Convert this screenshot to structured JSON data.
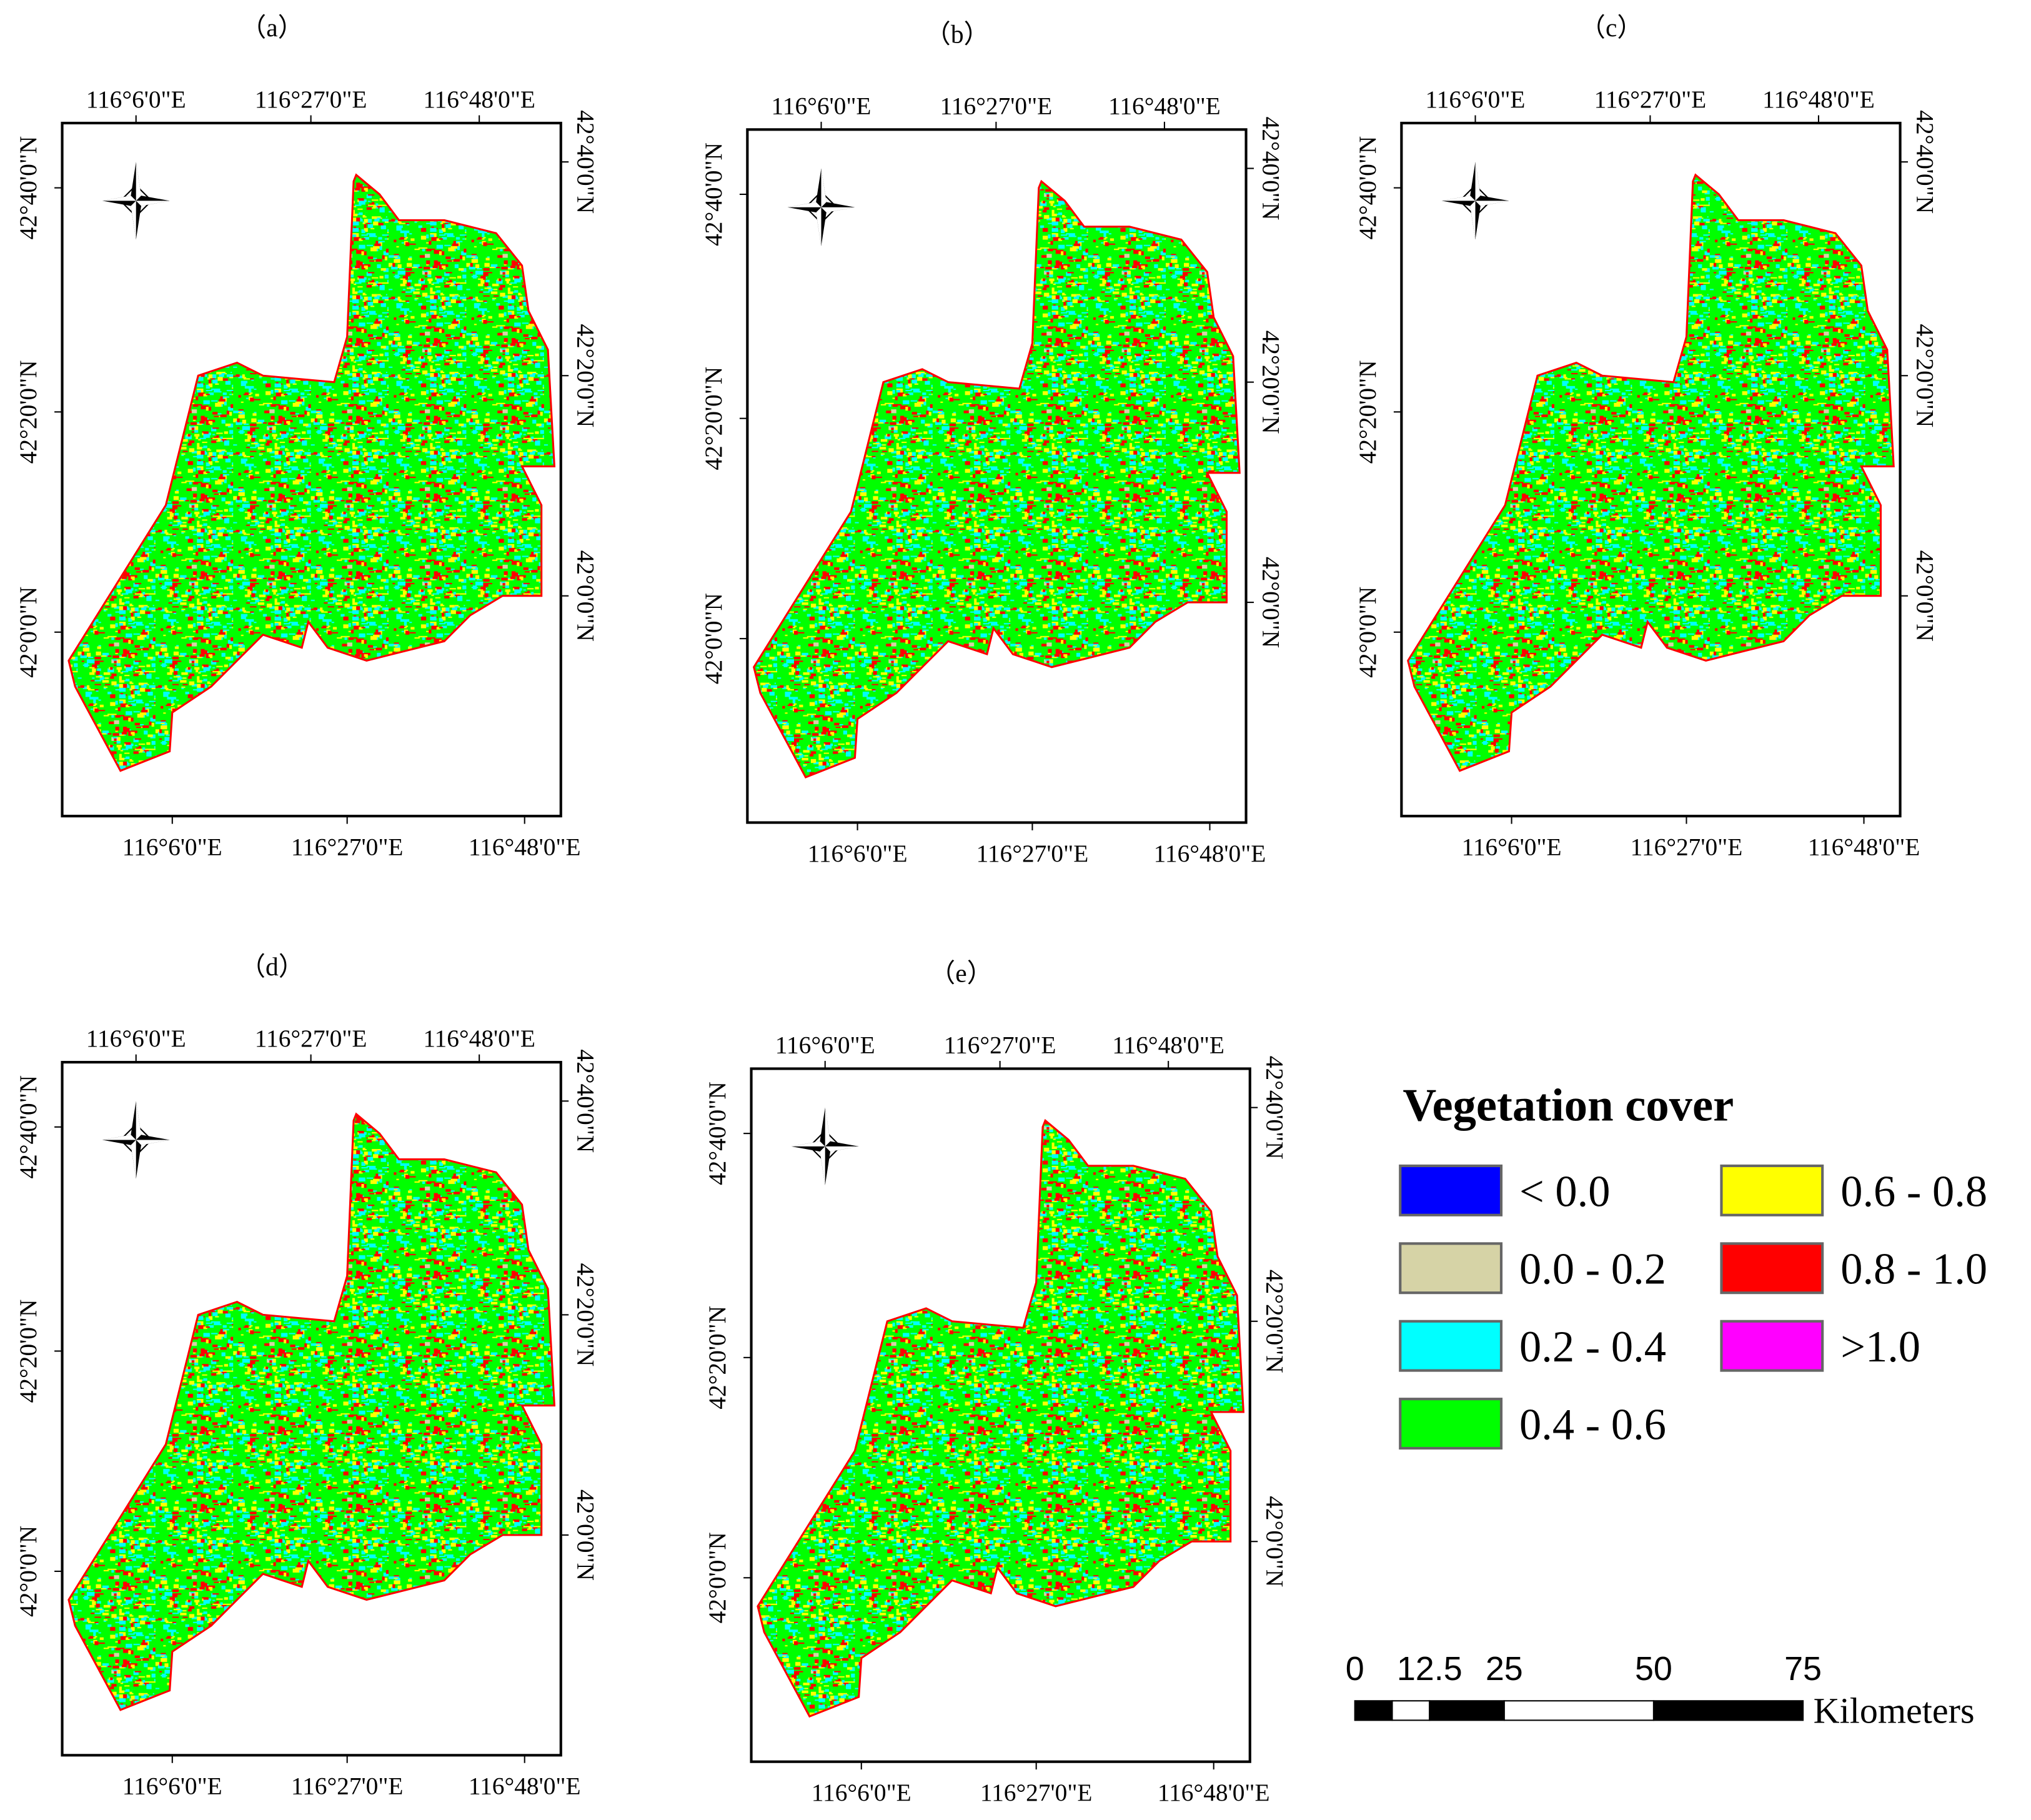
{
  "panels": [
    {
      "label": "（a）",
      "top_labels": [
        "116°6'0\"E",
        "116°27'0\"E",
        "116°48'0\"E"
      ],
      "bottom_labels": [
        "116°6'0\"E",
        "116°27'0\"E",
        "116°48'0\"E"
      ],
      "left_labels": [
        "42°40'0\"N",
        "42°20'0\"N",
        "42°0'0\"N"
      ],
      "right_labels": [
        "42°40'0\"N",
        "42°20'0\"N",
        "42°0'0\"N"
      ]
    },
    {
      "label": "（b）",
      "top_labels": [
        "116°6'0\"E",
        "116°27'0\"E",
        "116°48'0\"E"
      ],
      "bottom_labels": [
        "116°6'0\"E",
        "116°27'0\"E",
        "116°48'0\"E"
      ],
      "left_labels": [
        "42°40'0\"N",
        "42°20'0\"N",
        "42°0'0\"N"
      ],
      "right_labels": [
        "42°40'0\"N",
        "42°20'0\"N",
        "42°0'0\"N"
      ]
    },
    {
      "label": "（c）",
      "top_labels": [
        "116°6'0\"E",
        "116°27'0\"E",
        "116°48'0\"E"
      ],
      "bottom_labels": [
        "116°6'0\"E",
        "116°27'0\"E",
        "116°48'0\"E"
      ],
      "left_labels": [
        "42°40'0\"N",
        "42°20'0\"N",
        "42°0'0\"N"
      ],
      "right_labels": [
        "42°40'0\"N",
        "42°20'0\"N",
        "42°0'0\"N"
      ]
    },
    {
      "label": "（d）",
      "top_labels": [
        "116°6'0\"E",
        "116°27'0\"E",
        "116°48'0\"E"
      ],
      "bottom_labels": [
        "116°6'0\"E",
        "116°27'0\"E",
        "116°48'0\"E"
      ],
      "left_labels": [
        "42°40'0\"N",
        "42°20'0\"N",
        "42°0'0\"N"
      ],
      "right_labels": [
        "42°40'0\"N",
        "42°20'0\"N",
        "42°0'0\"N"
      ]
    },
    {
      "label": "（e）",
      "top_labels": [
        "116°6'0\"E",
        "116°27'0\"E",
        "116°48'0\"E"
      ],
      "bottom_labels": [
        "116°6'0\"E",
        "116°27'0\"E",
        "116°48'0\"E"
      ],
      "left_labels": [
        "42°40'0\"N",
        "42°20'0\"N",
        "42°0'0\"N"
      ],
      "right_labels": [
        "42°40'0\"N",
        "42°20'0\"N",
        "42°0'0\"N"
      ]
    }
  ],
  "legend": {
    "title": "Vegetation cover",
    "items": [
      {
        "label": "< 0.0",
        "color": "#0000ff"
      },
      {
        "label": "0.0 - 0.2",
        "color": "#d6d3a6"
      },
      {
        "label": "0.2 - 0.4",
        "color": "#00ffff"
      },
      {
        "label": "0.4 - 0.6",
        "color": "#00ff00"
      },
      {
        "label": "0.6 - 0.8",
        "color": "#ffff00"
      },
      {
        "label": "0.8 - 1.0",
        "color": "#ff0000"
      },
      {
        "label": ">1.0",
        "color": "#ff00ff"
      }
    ]
  },
  "scale_bar": {
    "ticks": [
      0,
      12.5,
      25,
      50,
      75
    ],
    "unit": "Kilometers"
  }
}
